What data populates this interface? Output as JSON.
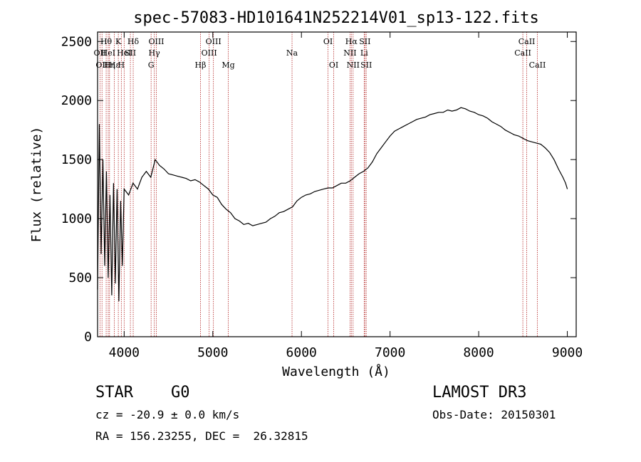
{
  "chart_data": {
    "type": "line",
    "title": "spec-57083-HD101641N252214V01_sp13-122.fits",
    "xlabel": "Wavelength (Å)",
    "ylabel": "Flux (relative)",
    "xlim": [
      3700,
      9100
    ],
    "ylim": [
      0,
      2580
    ],
    "xticks": [
      4000,
      5000,
      6000,
      7000,
      8000,
      9000
    ],
    "yticks": [
      0,
      500,
      1000,
      1500,
      2000,
      2500
    ],
    "grid": false,
    "series": [
      {
        "x": [
          3700,
          3720,
          3740,
          3760,
          3780,
          3800,
          3820,
          3840,
          3860,
          3880,
          3900,
          3920,
          3940,
          3960,
          3980,
          4000,
          4050,
          4100,
          4150,
          4200,
          4250,
          4300,
          4350,
          4400,
          4450,
          4500,
          4550,
          4600,
          4650,
          4700,
          4750,
          4800,
          4850,
          4900,
          4950,
          5000,
          5050,
          5100,
          5150,
          5200,
          5250,
          5300,
          5350,
          5400,
          5450,
          5500,
          5550,
          5600,
          5650,
          5700,
          5750,
          5800,
          5850,
          5900,
          5950,
          6000,
          6050,
          6100,
          6150,
          6200,
          6250,
          6300,
          6350,
          6400,
          6450,
          6500,
          6550,
          6600,
          6650,
          6700,
          6750,
          6800,
          6850,
          6900,
          6950,
          7000,
          7050,
          7100,
          7150,
          7200,
          7250,
          7300,
          7350,
          7400,
          7450,
          7500,
          7550,
          7600,
          7650,
          7700,
          7750,
          7800,
          7850,
          7900,
          7950,
          8000,
          8050,
          8100,
          8150,
          8200,
          8250,
          8300,
          8350,
          8400,
          8450,
          8500,
          8550,
          8600,
          8650,
          8700,
          8750,
          8800,
          8850,
          8900,
          8950,
          8980,
          9000
        ],
        "y": [
          400,
          1800,
          700,
          1500,
          600,
          1400,
          500,
          1200,
          350,
          1300,
          450,
          1250,
          300,
          1150,
          600,
          1250,
          1200,
          1300,
          1250,
          1350,
          1400,
          1350,
          1500,
          1450,
          1420,
          1380,
          1370,
          1360,
          1350,
          1340,
          1320,
          1330,
          1310,
          1280,
          1250,
          1200,
          1180,
          1120,
          1080,
          1050,
          1000,
          980,
          950,
          960,
          940,
          950,
          960,
          970,
          1000,
          1020,
          1050,
          1060,
          1080,
          1100,
          1150,
          1180,
          1200,
          1210,
          1230,
          1240,
          1250,
          1260,
          1260,
          1280,
          1300,
          1300,
          1320,
          1350,
          1380,
          1400,
          1430,
          1480,
          1550,
          1600,
          1650,
          1700,
          1740,
          1760,
          1780,
          1800,
          1820,
          1840,
          1850,
          1860,
          1880,
          1890,
          1900,
          1900,
          1920,
          1910,
          1920,
          1940,
          1930,
          1910,
          1900,
          1880,
          1870,
          1850,
          1820,
          1800,
          1780,
          1750,
          1730,
          1710,
          1700,
          1680,
          1660,
          1650,
          1640,
          1630,
          1600,
          1560,
          1500,
          1420,
          1350,
          1300,
          1250
        ]
      }
    ],
    "lines": [
      {
        "wl": 3727,
        "label": "OII",
        "row": 2
      },
      {
        "wl": 3750,
        "label": "OII",
        "row": 3
      },
      {
        "wl": 3797,
        "label": "Hθ",
        "row": 1
      },
      {
        "wl": 3820,
        "label": "HeI",
        "row": 2
      },
      {
        "wl": 3835,
        "label": "Hη",
        "row": 3
      },
      {
        "wl": 3889,
        "label": "Hε",
        "row": 3
      },
      {
        "wl": 3934,
        "label": "K",
        "row": 1
      },
      {
        "wl": 3968,
        "label": "H",
        "row": 3
      },
      {
        "wl": 4000,
        "label": "HeI",
        "row": 2
      },
      {
        "wl": 4070,
        "label": "SII",
        "row": 2
      },
      {
        "wl": 4102,
        "label": "Hδ",
        "row": 1
      },
      {
        "wl": 4304,
        "label": "G",
        "row": 3
      },
      {
        "wl": 4340,
        "label": "Hγ",
        "row": 2
      },
      {
        "wl": 4363,
        "label": "OIII",
        "row": 1
      },
      {
        "wl": 4861,
        "label": "Hβ",
        "row": 3
      },
      {
        "wl": 4959,
        "label": "OIII",
        "row": 2
      },
      {
        "wl": 5007,
        "label": "OIII",
        "row": 1
      },
      {
        "wl": 5175,
        "label": "Mg",
        "row": 3
      },
      {
        "wl": 5894,
        "label": "Na",
        "row": 2
      },
      {
        "wl": 6300,
        "label": "OI",
        "row": 1
      },
      {
        "wl": 6364,
        "label": "OI",
        "row": 3
      },
      {
        "wl": 6548,
        "label": "NII",
        "row": 2
      },
      {
        "wl": 6563,
        "label": "Hα",
        "row": 1
      },
      {
        "wl": 6583,
        "label": "NII",
        "row": 3
      },
      {
        "wl": 6708,
        "label": "Li",
        "row": 2
      },
      {
        "wl": 6716,
        "label": "SII",
        "row": 1
      },
      {
        "wl": 6731,
        "label": "SII",
        "row": 3
      },
      {
        "wl": 8498,
        "label": "CaII",
        "row": 2
      },
      {
        "wl": 8542,
        "label": "CaII",
        "row": 1
      },
      {
        "wl": 8662,
        "label": "CaII",
        "row": 3
      }
    ]
  },
  "info": {
    "class": "STAR",
    "subclass": "G0",
    "survey": "LAMOST DR3",
    "cz": "cz = -20.9 ± 0.0 km/s",
    "obs_date": "Obs-Date: 20150301",
    "coords": "RA = 156.23255, DEC =  26.32815"
  },
  "colors": {
    "spectrum": "#000000",
    "line_marker": "#b22222",
    "axes": "#000000",
    "background": "#ffffff"
  }
}
